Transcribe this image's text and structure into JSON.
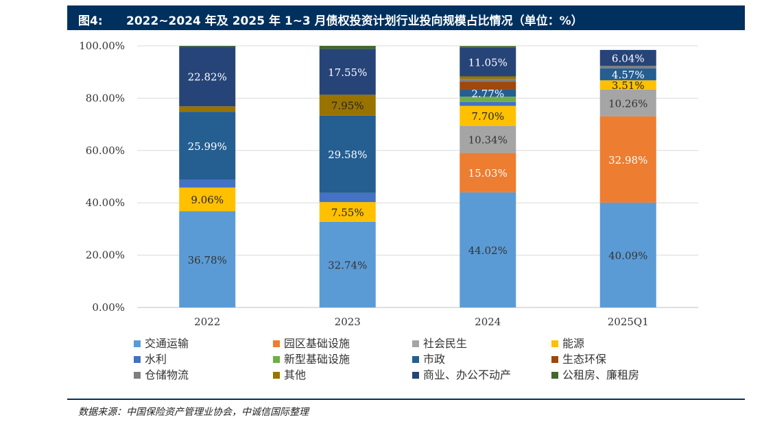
{
  "header": {
    "figure_label": "图4:",
    "title": "2022~2024 年及 2025 年 1~3 月债权投资计划行业投向规模占比情况（单位：%）"
  },
  "source": "数据来源：中国保险资产管理业协会，中诚信国际整理",
  "colors": {
    "header_bg": "#00305e",
    "交通运输": "#5b9bd5",
    "园区基础设施": "#ed7d31",
    "社会民生": "#a5a5a5",
    "能源": "#ffc000",
    "水利": "#4472c4",
    "新型基础设施": "#70ad47",
    "市政": "#255e91",
    "生态环保": "#9e480e",
    "仓储物流": "#7f7f7f",
    "其他": "#997300",
    "商业、办公不动产": "#264478",
    "公租房、廉租房": "#43682b"
  },
  "chart_data": {
    "type": "bar",
    "stacked": true,
    "categories": [
      "2022",
      "2023",
      "2024",
      "2025Q1"
    ],
    "ylim": [
      0,
      100
    ],
    "yticks": [
      "0.00%",
      "20.00%",
      "40.00%",
      "60.00%",
      "80.00%",
      "100.00%"
    ],
    "grid": true,
    "legend_position": "bottom",
    "series": [
      {
        "name": "交通运输",
        "values": [
          36.78,
          32.74,
          44.02,
          40.09
        ],
        "labels": [
          "36.78%",
          "32.74%",
          "44.02%",
          "40.09%"
        ]
      },
      {
        "name": "园区基础设施",
        "values": [
          0,
          0,
          15.03,
          32.98
        ],
        "labels": [
          "",
          "",
          "15.03%",
          "32.98%"
        ]
      },
      {
        "name": "社会民生",
        "values": [
          0,
          0,
          10.34,
          10.26
        ],
        "labels": [
          "",
          "",
          "10.34%",
          "10.26%"
        ]
      },
      {
        "name": "能源",
        "values": [
          9.06,
          7.55,
          7.7,
          3.51
        ],
        "labels": [
          "9.06%",
          "7.55%",
          "7.70%",
          "3.51%"
        ]
      },
      {
        "name": "水利",
        "values": [
          3.0,
          3.5,
          1.5,
          0
        ],
        "labels": [
          "",
          "",
          "",
          ""
        ]
      },
      {
        "name": "新型基础设施",
        "values": [
          0,
          0,
          2.0,
          0
        ],
        "labels": [
          "",
          "",
          "",
          ""
        ]
      },
      {
        "name": "市政",
        "values": [
          25.99,
          29.58,
          2.77,
          4.57
        ],
        "labels": [
          "25.99%",
          "29.58%",
          "2.77%",
          "4.57%"
        ]
      },
      {
        "name": "生态环保",
        "values": [
          0,
          0,
          3.0,
          0
        ],
        "labels": [
          "",
          "",
          "",
          ""
        ]
      },
      {
        "name": "仓储物流",
        "values": [
          0,
          0,
          1.0,
          1.0
        ],
        "labels": [
          "",
          "",
          "",
          ""
        ]
      },
      {
        "name": "其他",
        "values": [
          2.05,
          7.95,
          1.0,
          0
        ],
        "labels": [
          "",
          "7.95%",
          "",
          ""
        ]
      },
      {
        "name": "商业、办公不动产",
        "values": [
          22.82,
          17.55,
          11.05,
          6.04
        ],
        "labels": [
          "22.82%",
          "17.55%",
          "11.05%",
          "6.04%"
        ]
      },
      {
        "name": "公租房、廉租房",
        "values": [
          0.3,
          1.13,
          0.5,
          0
        ],
        "labels": [
          "",
          "",
          "",
          ""
        ]
      }
    ]
  }
}
